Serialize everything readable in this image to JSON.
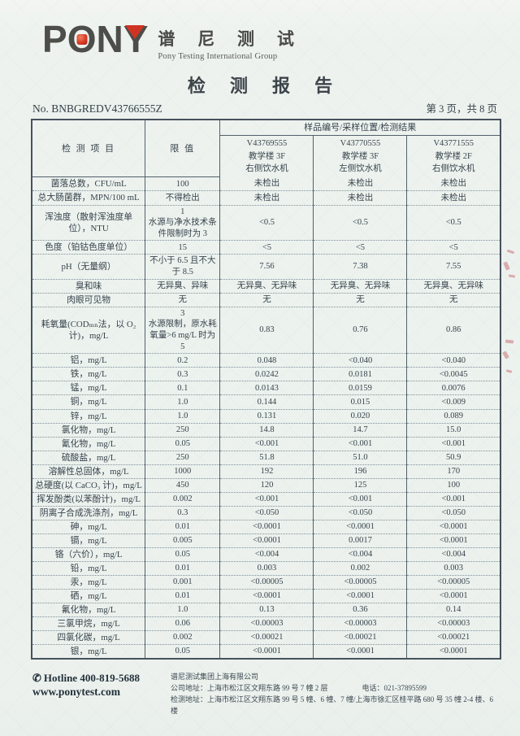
{
  "header": {
    "logo_letters": [
      "P",
      "O",
      "N",
      "Y"
    ],
    "logo_cn": "谱 尼 测 试",
    "logo_en": "Pony Testing International Group",
    "title": "检 测 报 告",
    "report_no": "No. BNBGREDV43766555Z",
    "page_info": "第 3 页，共 8 页"
  },
  "table": {
    "header": {
      "item": "检 测 项 目",
      "limit": "限 值",
      "results_group": "样品编号/采样位置/检测结果",
      "samples": [
        "V43769555\n教学楼 3F\n右侧饮水机",
        "V43770555\n教学楼 3F\n左侧饮水机",
        "V43771555\n教学楼 2F\n右侧饮水机"
      ]
    },
    "rows": [
      {
        "item": "菌落总数，CFU/mL",
        "limit": "100",
        "values": [
          "未检出",
          "未检出",
          "未检出"
        ]
      },
      {
        "item": "总大肠菌群，MPN/100 mL",
        "limit": "不得检出",
        "values": [
          "未检出",
          "未检出",
          "未检出"
        ]
      },
      {
        "item": "浑浊度（散射浑浊度单位），NTU",
        "limit": "1\n水源与净水技术条件限制时为 3",
        "values": [
          "<0.5",
          "<0.5",
          "<0.5"
        ]
      },
      {
        "item": "色度（铂钴色度单位）",
        "limit": "15",
        "values": [
          "<5",
          "<5",
          "<5"
        ]
      },
      {
        "item": "pH（无量纲）",
        "limit": "不小于 6.5 且不大于 8.5",
        "values": [
          "7.56",
          "7.38",
          "7.55"
        ]
      },
      {
        "item": "臭和味",
        "limit": "无异臭、异味",
        "values": [
          "无异臭、无异味",
          "无异臭、无异味",
          "无异臭、无异味"
        ]
      },
      {
        "item": "肉眼可见物",
        "limit": "无",
        "values": [
          "无",
          "无",
          "无"
        ]
      },
      {
        "item": "耗氧量(CODₘₙ法，以 O₂ 计)，mg/L",
        "limit": "3\n水源限制，原水耗氧量>6 mg/L 时为 5",
        "values": [
          "0.83",
          "0.76",
          "0.86"
        ]
      },
      {
        "item": "铝，mg/L",
        "limit": "0.2",
        "values": [
          "0.048",
          "<0.040",
          "<0.040"
        ]
      },
      {
        "item": "铁，mg/L",
        "limit": "0.3",
        "values": [
          "0.0242",
          "0.0181",
          "<0.0045"
        ]
      },
      {
        "item": "锰，mg/L",
        "limit": "0.1",
        "values": [
          "0.0143",
          "0.0159",
          "0.0076"
        ]
      },
      {
        "item": "铜，mg/L",
        "limit": "1.0",
        "values": [
          "0.144",
          "0.015",
          "<0.009"
        ]
      },
      {
        "item": "锌，mg/L",
        "limit": "1.0",
        "values": [
          "0.131",
          "0.020",
          "0.089"
        ]
      },
      {
        "item": "氯化物，mg/L",
        "limit": "250",
        "values": [
          "14.8",
          "14.7",
          "15.0"
        ]
      },
      {
        "item": "氰化物，mg/L",
        "limit": "0.05",
        "values": [
          "<0.001",
          "<0.001",
          "<0.001"
        ]
      },
      {
        "item": "硫酸盐，mg/L",
        "limit": "250",
        "values": [
          "51.8",
          "51.0",
          "50.9"
        ]
      },
      {
        "item": "溶解性总固体，mg/L",
        "limit": "1000",
        "values": [
          "192",
          "196",
          "170"
        ]
      },
      {
        "item": "总硬度(以 CaCO₃ 计)，mg/L",
        "limit": "450",
        "values": [
          "120",
          "125",
          "100"
        ]
      },
      {
        "item": "挥发酚类(以苯酚计)，mg/L",
        "limit": "0.002",
        "values": [
          "<0.001",
          "<0.001",
          "<0.001"
        ]
      },
      {
        "item": "阴离子合成洗涤剂，mg/L",
        "limit": "0.3",
        "values": [
          "<0.050",
          "<0.050",
          "<0.050"
        ]
      },
      {
        "item": "砷，mg/L",
        "limit": "0.01",
        "values": [
          "<0.0001",
          "<0.0001",
          "<0.0001"
        ]
      },
      {
        "item": "镉，mg/L",
        "limit": "0.005",
        "values": [
          "<0.0001",
          "0.0017",
          "<0.0001"
        ]
      },
      {
        "item": "铬（六价），mg/L",
        "limit": "0.05",
        "values": [
          "<0.004",
          "<0.004",
          "<0.004"
        ]
      },
      {
        "item": "铅，mg/L",
        "limit": "0.01",
        "values": [
          "0.003",
          "0.002",
          "0.003"
        ]
      },
      {
        "item": "汞，mg/L",
        "limit": "0.001",
        "values": [
          "<0.00005",
          "<0.00005",
          "<0.00005"
        ]
      },
      {
        "item": "硒，mg/L",
        "limit": "0.01",
        "values": [
          "<0.0001",
          "<0.0001",
          "<0.0001"
        ]
      },
      {
        "item": "氟化物，mg/L",
        "limit": "1.0",
        "values": [
          "0.13",
          "0.36",
          "0.14"
        ]
      },
      {
        "item": "三氯甲烷，mg/L",
        "limit": "0.06",
        "values": [
          "<0.00003",
          "<0.00003",
          "<0.00003"
        ]
      },
      {
        "item": "四氯化碳，mg/L",
        "limit": "0.002",
        "values": [
          "<0.00021",
          "<0.00021",
          "<0.00021"
        ]
      },
      {
        "item": "银，mg/L",
        "limit": "0.05",
        "values": [
          "<0.0001",
          "<0.0001",
          "<0.0001"
        ]
      }
    ]
  },
  "footer": {
    "phone_icon": "✆",
    "hotline": "Hotline 400-819-5688",
    "website": "www.ponytest.com",
    "company": "谱尼测试集团上海有限公司",
    "company_address": "公司地址：上海市松江区文翔东路 99 号 7 幢 2 层",
    "tel": "电话：021-37895599",
    "test_address": "检测地址：上海市松江区文翔东路 99 号 5 幢、6 幢、7 幢/上海市徐汇区桂平路 680 号 35 幢 2-4 楼、6 楼"
  }
}
